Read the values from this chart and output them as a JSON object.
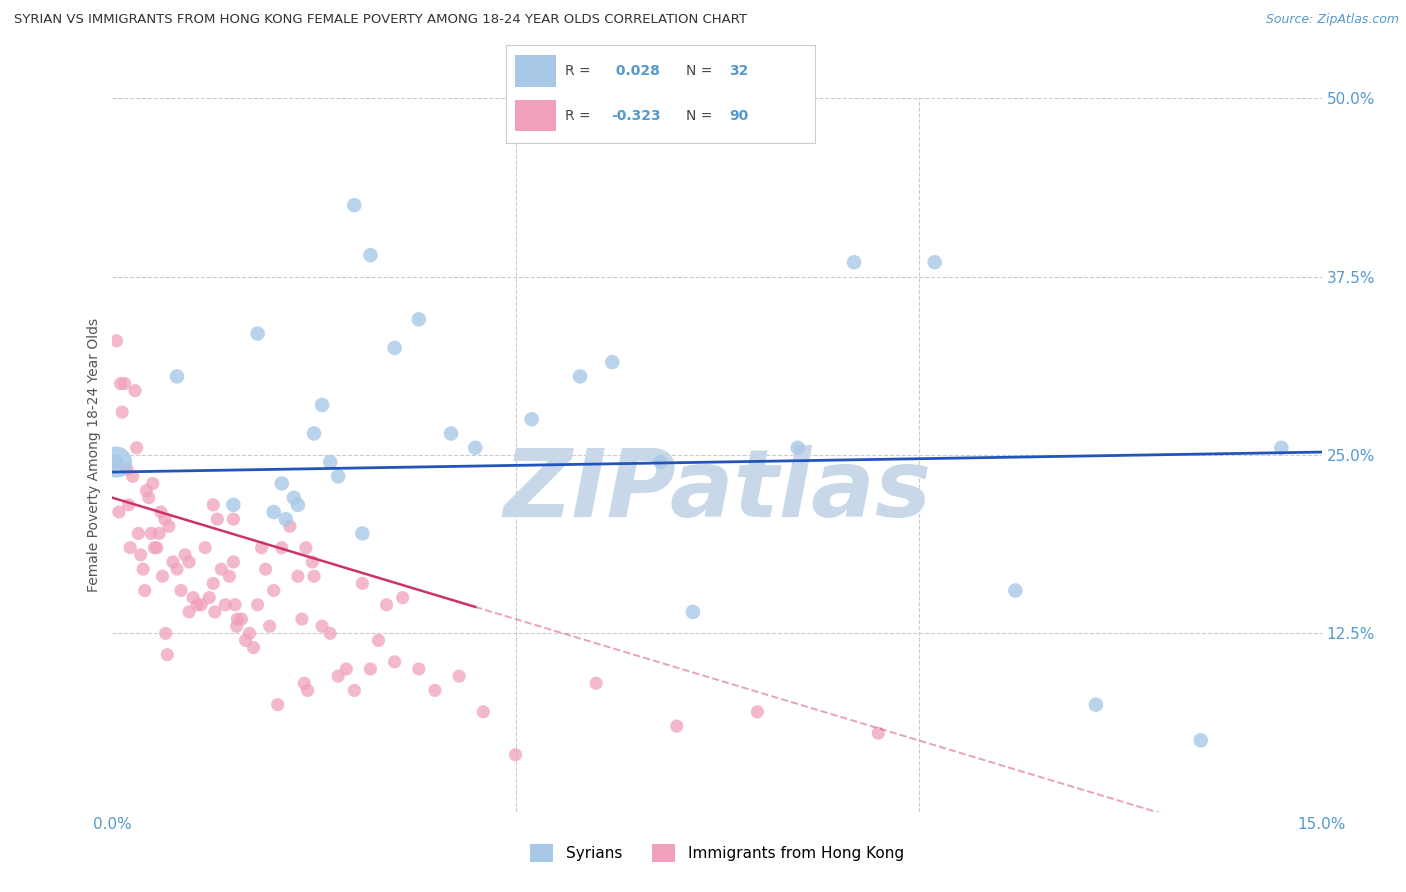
{
  "title": "SYRIAN VS IMMIGRANTS FROM HONG KONG FEMALE POVERTY AMONG 18-24 YEAR OLDS CORRELATION CHART",
  "source": "Source: ZipAtlas.com",
  "ylabel": "Female Poverty Among 18-24 Year Olds",
  "xlim": [
    0,
    15
  ],
  "ylim": [
    0,
    50
  ],
  "yticks": [
    0,
    12.5,
    25.0,
    37.5,
    50.0
  ],
  "ytick_labels": [
    "",
    "12.5%",
    "25.0%",
    "37.5%",
    "50.0%"
  ],
  "xticks": [
    0,
    5,
    10,
    15
  ],
  "xtick_labels": [
    "0.0%",
    "",
    "",
    "15.0%"
  ],
  "blue_line_color": "#2255bb",
  "pink_line_color": "#cc3366",
  "blue_dot_color": "#a8c8e8",
  "pink_dot_color": "#f0a0b8",
  "watermark": "ZIPatlas",
  "watermark_color": "#c8d8e8",
  "background_color": "#ffffff",
  "grid_color": "#cccccc",
  "title_color": "#333333",
  "axis_color": "#5599cc",
  "blue_x": [
    0.05,
    0.8,
    1.5,
    1.8,
    2.1,
    2.3,
    2.5,
    2.6,
    2.7,
    2.8,
    3.0,
    3.2,
    3.5,
    3.8,
    4.2,
    4.5,
    5.2,
    5.8,
    6.2,
    6.8,
    7.2,
    8.5,
    9.2,
    10.2,
    11.2,
    12.2,
    13.5,
    14.5,
    2.0,
    2.15,
    2.25,
    3.1
  ],
  "blue_y": [
    24.5,
    30.5,
    21.5,
    33.5,
    23.0,
    21.5,
    26.5,
    28.5,
    24.5,
    23.5,
    42.5,
    39.0,
    32.5,
    34.5,
    26.5,
    25.5,
    27.5,
    30.5,
    31.5,
    24.5,
    14.0,
    25.5,
    38.5,
    38.5,
    15.5,
    7.5,
    5.0,
    25.5,
    21.0,
    20.5,
    22.0,
    19.5
  ],
  "pink_x": [
    0.05,
    0.08,
    0.1,
    0.12,
    0.15,
    0.18,
    0.2,
    0.22,
    0.25,
    0.28,
    0.3,
    0.32,
    0.35,
    0.38,
    0.4,
    0.42,
    0.45,
    0.48,
    0.5,
    0.52,
    0.55,
    0.6,
    0.65,
    0.7,
    0.75,
    0.8,
    0.85,
    0.9,
    0.95,
    1.0,
    1.05,
    1.1,
    1.15,
    1.2,
    1.25,
    1.3,
    1.35,
    1.4,
    1.45,
    1.5,
    1.55,
    1.6,
    1.65,
    1.7,
    1.75,
    1.8,
    1.85,
    1.9,
    1.95,
    2.0,
    2.1,
    2.2,
    2.3,
    2.4,
    2.5,
    2.6,
    2.7,
    2.8,
    2.9,
    3.0,
    3.2,
    3.4,
    3.6,
    3.8,
    4.0,
    4.3,
    4.6,
    5.0,
    6.0,
    7.0,
    8.0,
    9.5,
    1.5,
    1.52,
    1.54,
    0.58,
    0.62,
    0.66,
    0.68,
    1.25,
    1.27,
    2.35,
    2.38,
    2.42,
    2.48,
    3.1,
    3.3,
    3.5,
    2.05,
    0.95
  ],
  "pink_y": [
    33.0,
    21.0,
    30.0,
    28.0,
    30.0,
    24.0,
    21.5,
    18.5,
    23.5,
    29.5,
    25.5,
    19.5,
    18.0,
    17.0,
    15.5,
    22.5,
    22.0,
    19.5,
    23.0,
    18.5,
    18.5,
    21.0,
    20.5,
    20.0,
    17.5,
    17.0,
    15.5,
    18.0,
    17.5,
    15.0,
    14.5,
    14.5,
    18.5,
    15.0,
    21.5,
    20.5,
    17.0,
    14.5,
    16.5,
    17.5,
    13.5,
    13.5,
    12.0,
    12.5,
    11.5,
    14.5,
    18.5,
    17.0,
    13.0,
    15.5,
    18.5,
    20.0,
    16.5,
    18.5,
    16.5,
    13.0,
    12.5,
    9.5,
    10.0,
    8.5,
    10.0,
    14.5,
    15.0,
    10.0,
    8.5,
    9.5,
    7.0,
    4.0,
    9.0,
    6.0,
    7.0,
    5.5,
    20.5,
    14.5,
    13.0,
    19.5,
    16.5,
    12.5,
    11.0,
    16.0,
    14.0,
    13.5,
    9.0,
    8.5,
    17.5,
    16.0,
    12.0,
    10.5,
    7.5,
    14.0
  ]
}
